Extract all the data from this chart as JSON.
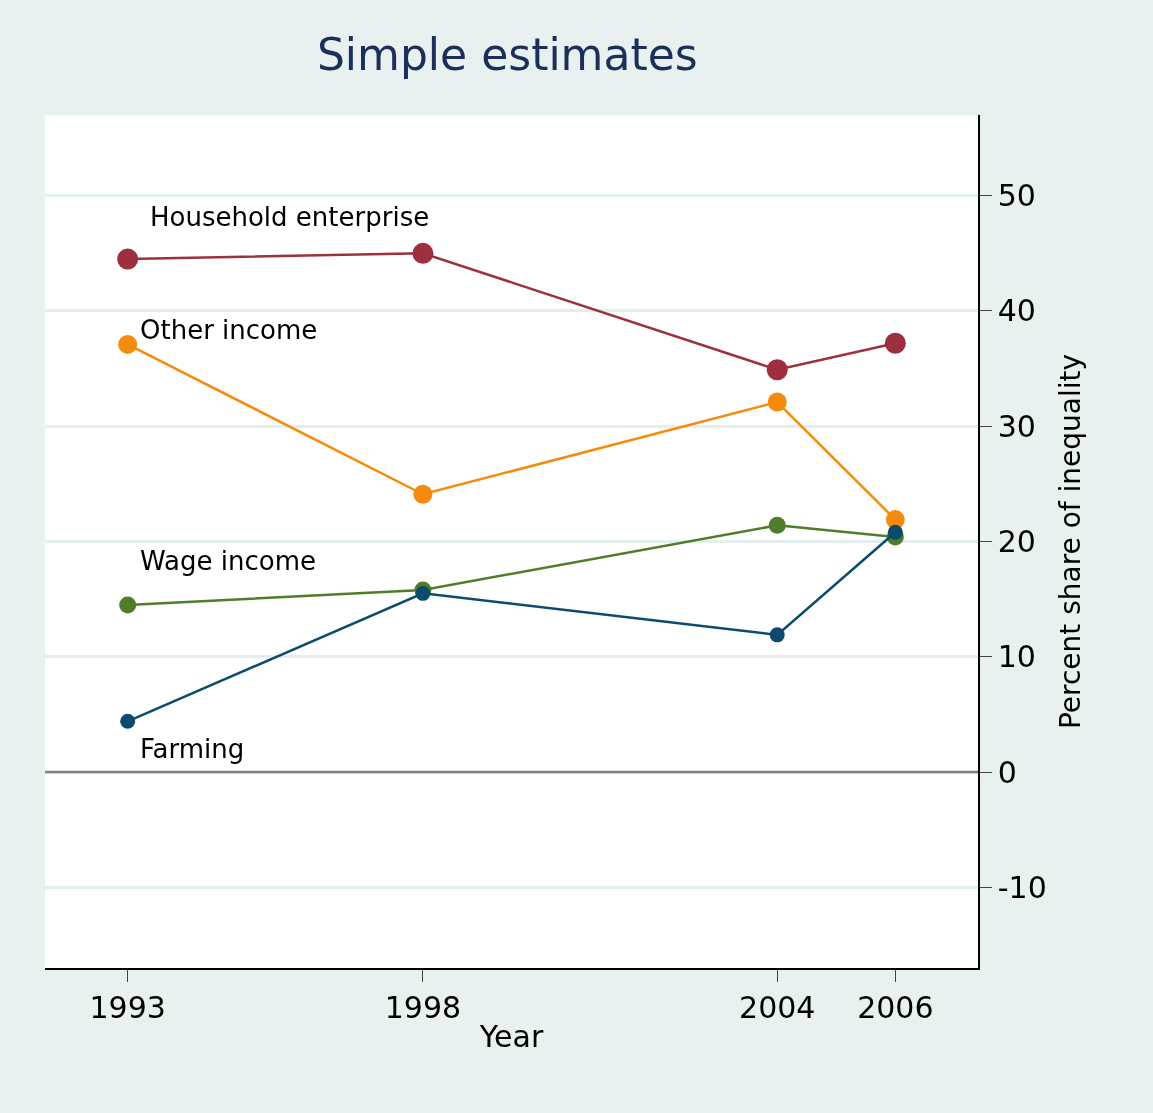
{
  "chart_data": {
    "type": "line",
    "title": "Simple estimates",
    "xlabel": "Year",
    "ylabel": "Percent share of inequality",
    "x": [
      1993,
      1998,
      2004,
      2006
    ],
    "xlim": [
      1991.6,
      2007.4
    ],
    "xticks": [
      1993,
      1998,
      2004,
      2006
    ],
    "ylim": [
      -17,
      57
    ],
    "yticks": [
      -10,
      0,
      10,
      20,
      30,
      40,
      50
    ],
    "grid": "y",
    "legend": false,
    "marker": "circle",
    "line_style": "solid",
    "ref_lines": [
      {
        "axis": "y",
        "value": 0,
        "color": "#808080"
      }
    ],
    "series": [
      {
        "name": "Household enterprise",
        "color": "#9e2f3e",
        "values": [
          44.5,
          45.0,
          34.9,
          37.2
        ]
      },
      {
        "name": "Other income",
        "color": "#f58b0c",
        "values": [
          37.1,
          24.1,
          32.1,
          21.9
        ]
      },
      {
        "name": "Wage income",
        "color": "#4f7d2a",
        "values": [
          14.5,
          15.8,
          21.4,
          20.4
        ]
      },
      {
        "name": "Farming",
        "color": "#0c4a6e",
        "values": [
          4.4,
          15.5,
          11.9,
          20.8
        ]
      }
    ]
  }
}
